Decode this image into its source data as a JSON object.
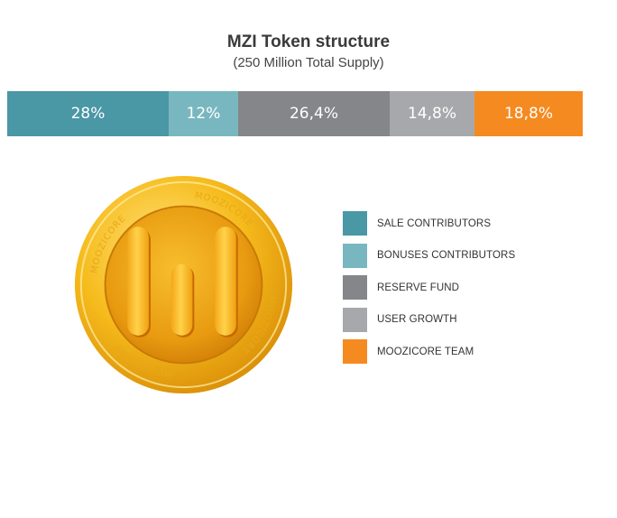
{
  "chart_data": {
    "type": "bar",
    "title": "MZI Token structure",
    "subtitle": "(250 Million Total Supply)",
    "categories": [
      "SALE CONTRIBUTORS",
      "BONUSES CONTRIBUTORS",
      "RESERVE FUND",
      "USER GROWTH",
      "MOOZICORE TEAM"
    ],
    "values": [
      28,
      12,
      26.4,
      14.8,
      18.8
    ],
    "value_labels": [
      "28%",
      "12%",
      "26,4%",
      "14,8%",
      "18,8%"
    ],
    "colors": [
      "#4a97a6",
      "#79b7c0",
      "#858689",
      "#a7a8ab",
      "#f58a20"
    ],
    "unit": "%",
    "legend_position": "right"
  },
  "coin": {
    "ring_text": "MOOZICORE"
  }
}
